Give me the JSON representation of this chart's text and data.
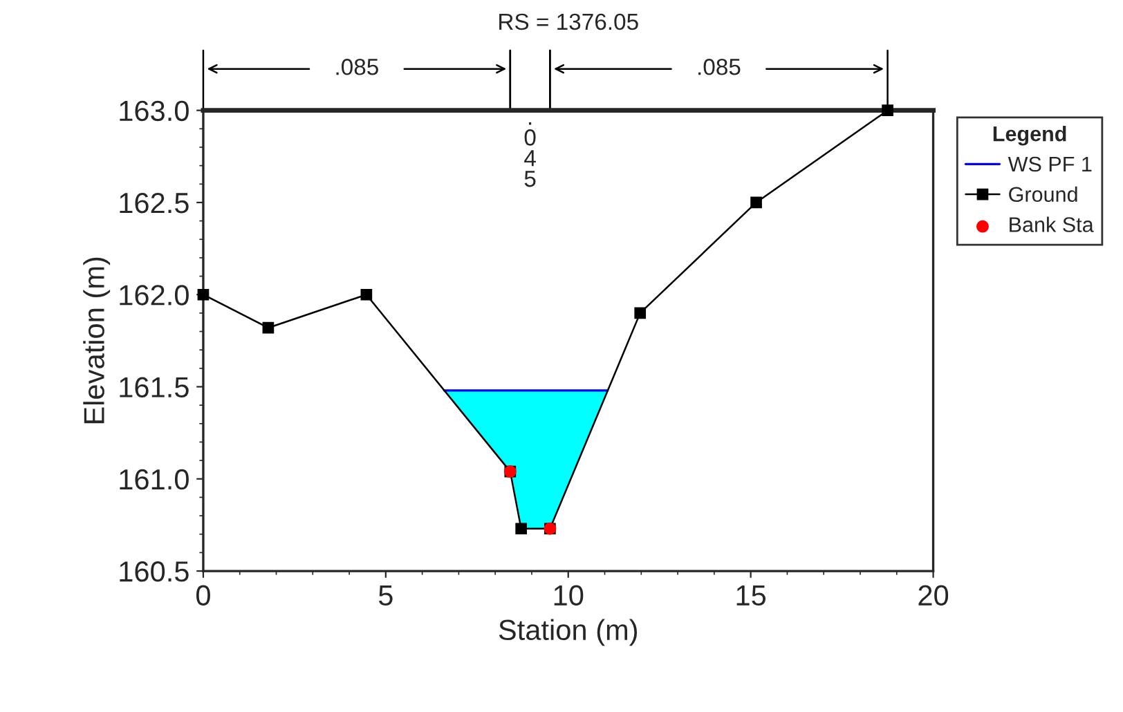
{
  "chart_data": {
    "type": "line",
    "title": "RS = 1376.05",
    "xlabel": "Station (m)",
    "ylabel": "Elevation (m)",
    "legend_title": "Legend",
    "series": [
      {
        "name": "WS PF 1",
        "type": "area",
        "color": "#0000ff",
        "x": [
          6.6,
          8.41,
          8.71,
          9.5,
          11.08
        ],
        "values": [
          161.48,
          161.48,
          161.48,
          161.48,
          161.48
        ],
        "marker": "none"
      },
      {
        "name": "Ground",
        "type": "line",
        "color": "#000000",
        "x": [
          0,
          1.78,
          4.47,
          8.41,
          8.71,
          9.5,
          11.97,
          15.15,
          18.75
        ],
        "values": [
          162.0,
          161.82,
          162.0,
          161.04,
          160.73,
          160.73,
          161.9,
          162.5,
          163.0
        ],
        "marker": "square"
      },
      {
        "name": "Bank Sta",
        "type": "scatter",
        "color": "#ff0000",
        "x": [
          8.41,
          9.5
        ],
        "values": [
          161.04,
          160.73
        ],
        "marker": "circle"
      }
    ],
    "annotations": [
      ".085",
      ".045",
      ".085"
    ],
    "xlim": [
      0,
      20
    ],
    "xticks": [
      0,
      5,
      10,
      15,
      20
    ],
    "ylim": [
      160.5,
      163.0
    ],
    "yticks": [
      {
        "value": 160.5,
        "label": "160.5"
      },
      {
        "value": 161.0,
        "label": "161.0"
      },
      {
        "value": 161.5,
        "label": "161.5"
      },
      {
        "value": 162.0,
        "label": "162.0"
      },
      {
        "value": 162.5,
        "label": "162.5"
      },
      {
        "value": 163.0,
        "label": "163.0"
      }
    ],
    "grid": false,
    "legend": "right"
  }
}
